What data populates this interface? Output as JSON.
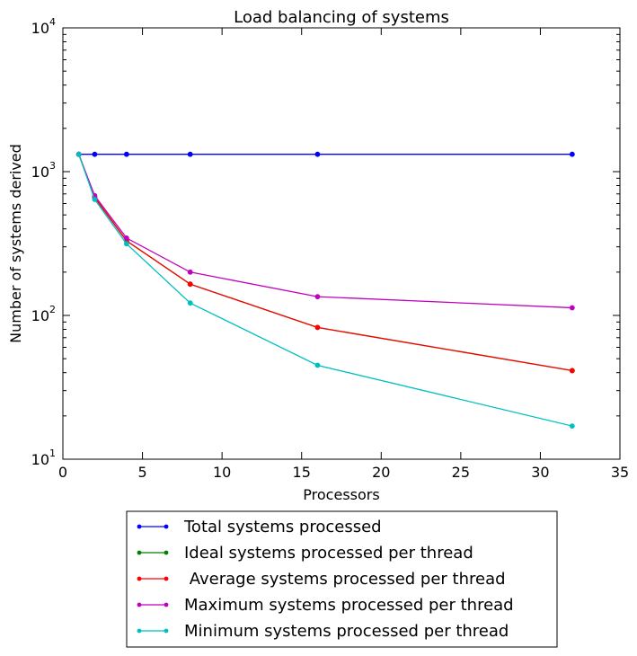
{
  "chart_data": {
    "type": "line",
    "title": "Load balancing of systems",
    "xlabel": "Processors",
    "ylabel": "Number of systems derived",
    "xlim": [
      0,
      35
    ],
    "ylim": [
      10,
      10000
    ],
    "yscale": "log",
    "grid": false,
    "legend_position": "bottom-center (outside plot)",
    "x_ticks": [
      "0",
      "5",
      "10",
      "15",
      "20",
      "25",
      "30",
      "35"
    ],
    "y_ticks": [
      {
        "base": "10",
        "exp": "1"
      },
      {
        "base": "10",
        "exp": "2"
      },
      {
        "base": "10",
        "exp": "3"
      },
      {
        "base": "10",
        "exp": "4"
      }
    ],
    "series": [
      {
        "name": "Total systems processed",
        "color": "#0000ff",
        "x": [
          1,
          2,
          4,
          8,
          16,
          32
        ],
        "y": [
          1320,
          1320,
          1320,
          1320,
          1320,
          1320
        ]
      },
      {
        "name": "Ideal systems processed per thread",
        "color": "#008000",
        "x": [
          1,
          2,
          4,
          8,
          16,
          32
        ],
        "y": [
          1320,
          660,
          330,
          165,
          82.5,
          41.3
        ]
      },
      {
        "name": " Average systems processed per thread",
        "color": "#ff0000",
        "x": [
          1,
          2,
          4,
          8,
          16,
          32
        ],
        "y": [
          1320,
          660,
          330,
          165,
          82.5,
          41.3
        ]
      },
      {
        "name": "Maximum systems processed per thread",
        "color": "#bf00bf",
        "x": [
          1,
          2,
          4,
          8,
          16,
          32
        ],
        "y": [
          1320,
          680,
          345,
          200,
          135,
          113
        ]
      },
      {
        "name": "Minimum systems processed per thread",
        "color": "#00bfbf",
        "x": [
          1,
          2,
          4,
          8,
          16,
          32
        ],
        "y": [
          1320,
          640,
          315,
          122,
          45,
          17
        ]
      }
    ]
  }
}
